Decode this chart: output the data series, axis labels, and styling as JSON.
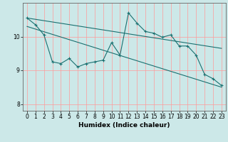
{
  "xlabel": "Humidex (Indice chaleur)",
  "ylabel": "",
  "background_color": "#cce8e8",
  "grid_color": "#ff9999",
  "line_color": "#1a7070",
  "xlim": [
    -0.5,
    23.5
  ],
  "ylim": [
    7.8,
    11.0
  ],
  "yticks": [
    8,
    9,
    10
  ],
  "xticks": [
    0,
    1,
    2,
    3,
    4,
    5,
    6,
    7,
    8,
    9,
    10,
    11,
    12,
    13,
    14,
    15,
    16,
    17,
    18,
    19,
    20,
    21,
    22,
    23
  ],
  "series1_y": [
    10.55,
    10.35,
    10.05,
    9.25,
    9.2,
    9.35,
    9.1,
    9.2,
    9.25,
    9.3,
    9.82,
    9.45,
    10.7,
    10.4,
    10.15,
    10.1,
    9.98,
    10.05,
    9.72,
    9.72,
    9.45,
    8.88,
    8.75,
    8.55
  ],
  "trend1_x": [
    0,
    23
  ],
  "trend1_y": [
    10.55,
    9.65
  ],
  "trend2_x": [
    0,
    23
  ],
  "trend2_y": [
    10.3,
    8.5
  ],
  "xlabel_fontsize": 6.5,
  "tick_fontsize": 5.5
}
